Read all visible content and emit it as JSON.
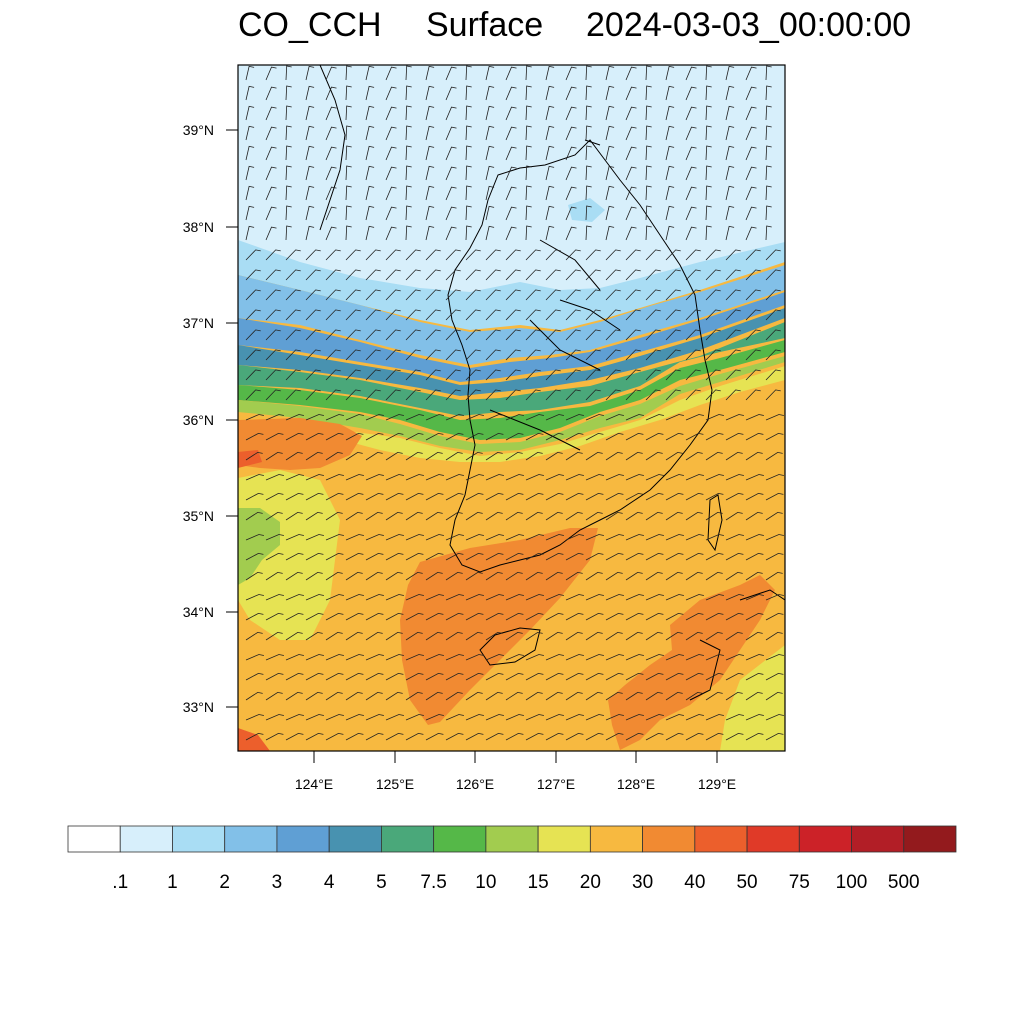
{
  "title": {
    "species": "CO_CCH",
    "level": "Surface",
    "datetime": "2024-03-03_00:00:00"
  },
  "map": {
    "lon_range": [
      123.05,
      129.8
    ],
    "lat_range": [
      32.55,
      39.7
    ],
    "lat_ticks": [
      "39°N",
      "38°N",
      "37°N",
      "36°N",
      "35°N",
      "34°N",
      "33°N"
    ],
    "lon_ticks": [
      "124°E",
      "125°E",
      "126°E",
      "127°E",
      "128°E",
      "129°E"
    ],
    "wind_barbs": "shown",
    "coastlines": "shown",
    "province_boundaries": "shown"
  },
  "colorbar": {
    "labels": [
      ".1",
      "1",
      "2",
      "3",
      "4",
      "5",
      "7.5",
      "10",
      "15",
      "20",
      "30",
      "40",
      "50",
      "75",
      "100",
      "500"
    ],
    "colors": [
      "#ffffff",
      "#d7effb",
      "#a9ddf4",
      "#82c0e8",
      "#5f9fd4",
      "#4892b0",
      "#4aa87a",
      "#55b848",
      "#a2cc4f",
      "#e6e353",
      "#f7b940",
      "#f18a32",
      "#ec5f2c",
      "#e03a28",
      "#cc2228",
      "#b21e26",
      "#931a1d"
    ]
  }
}
